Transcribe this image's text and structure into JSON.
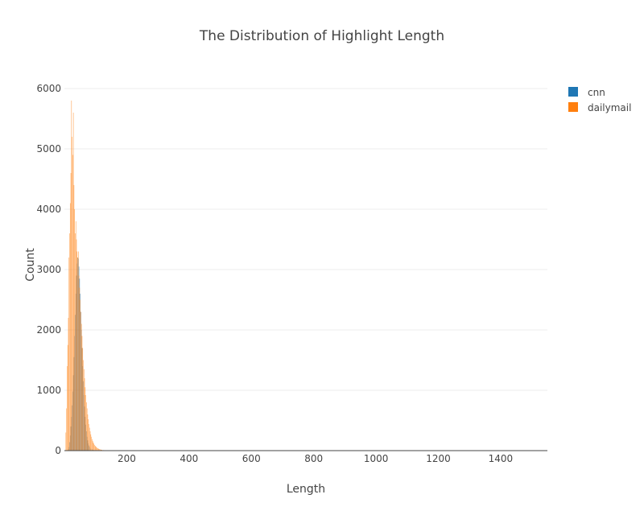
{
  "chart_data": {
    "type": "bar",
    "subtype": "overlaid-histogram",
    "title": "The Distribution of Highlight Length",
    "xlabel": "Length",
    "ylabel": "Count",
    "xlim": [
      0,
      1550
    ],
    "ylim": [
      0,
      6000
    ],
    "x_ticks": [
      200,
      400,
      600,
      800,
      1000,
      1200,
      1400
    ],
    "y_ticks": [
      0,
      1000,
      2000,
      3000,
      4000,
      5000,
      6000
    ],
    "x_tick_labels": [
      "200",
      "400",
      "600",
      "800",
      "1000",
      "1200",
      "1400"
    ],
    "y_tick_labels": [
      "0",
      "1000",
      "2000",
      "3000",
      "4000",
      "5000",
      "6000"
    ],
    "grid": true,
    "legend_position": "top-right",
    "bin_width": 2,
    "series": [
      {
        "name": "cnn",
        "color": "#1f77b4",
        "bins": [
          [
            12,
            20
          ],
          [
            14,
            60
          ],
          [
            16,
            140
          ],
          [
            18,
            250
          ],
          [
            20,
            400
          ],
          [
            22,
            560
          ],
          [
            24,
            750
          ],
          [
            26,
            980
          ],
          [
            28,
            1250
          ],
          [
            30,
            1550
          ],
          [
            32,
            1900
          ],
          [
            34,
            2250
          ],
          [
            36,
            2600
          ],
          [
            38,
            2900
          ],
          [
            40,
            3100
          ],
          [
            42,
            3200
          ],
          [
            44,
            3180
          ],
          [
            46,
            3050
          ],
          [
            48,
            2850
          ],
          [
            50,
            2600
          ],
          [
            52,
            2300
          ],
          [
            54,
            2000
          ],
          [
            56,
            1700
          ],
          [
            58,
            1400
          ],
          [
            60,
            1150
          ],
          [
            62,
            920
          ],
          [
            64,
            730
          ],
          [
            66,
            560
          ],
          [
            68,
            430
          ],
          [
            70,
            320
          ],
          [
            72,
            230
          ],
          [
            74,
            170
          ],
          [
            76,
            120
          ],
          [
            78,
            85
          ],
          [
            80,
            60
          ],
          [
            84,
            35
          ],
          [
            88,
            20
          ],
          [
            92,
            12
          ],
          [
            100,
            6
          ],
          [
            110,
            3
          ]
        ]
      },
      {
        "name": "dailymail",
        "color": "#ff7f0e",
        "bins": [
          [
            4,
            300
          ],
          [
            6,
            700
          ],
          [
            8,
            1400
          ],
          [
            10,
            1750
          ],
          [
            12,
            2200
          ],
          [
            14,
            3200
          ],
          [
            16,
            3600
          ],
          [
            18,
            4100
          ],
          [
            20,
            4600
          ],
          [
            22,
            5800
          ],
          [
            24,
            5200
          ],
          [
            26,
            4900
          ],
          [
            28,
            5600
          ],
          [
            30,
            4400
          ],
          [
            32,
            4000
          ],
          [
            34,
            3600
          ],
          [
            36,
            3800
          ],
          [
            38,
            3500
          ],
          [
            40,
            3300
          ],
          [
            42,
            3200
          ],
          [
            44,
            3300
          ],
          [
            46,
            2900
          ],
          [
            48,
            2700
          ],
          [
            50,
            2500
          ],
          [
            52,
            2300
          ],
          [
            54,
            2100
          ],
          [
            56,
            1900
          ],
          [
            58,
            1700
          ],
          [
            60,
            1500
          ],
          [
            62,
            1350
          ],
          [
            64,
            1200
          ],
          [
            66,
            1050
          ],
          [
            68,
            920
          ],
          [
            70,
            800
          ],
          [
            72,
            700
          ],
          [
            74,
            600
          ],
          [
            76,
            520
          ],
          [
            78,
            440
          ],
          [
            80,
            380
          ],
          [
            82,
            320
          ],
          [
            84,
            270
          ],
          [
            86,
            230
          ],
          [
            88,
            190
          ],
          [
            90,
            160
          ],
          [
            92,
            135
          ],
          [
            94,
            115
          ],
          [
            96,
            95
          ],
          [
            98,
            80
          ],
          [
            100,
            68
          ],
          [
            102,
            57
          ],
          [
            104,
            48
          ],
          [
            106,
            40
          ],
          [
            108,
            34
          ],
          [
            110,
            28
          ],
          [
            112,
            24
          ],
          [
            114,
            20
          ],
          [
            116,
            17
          ],
          [
            118,
            14
          ],
          [
            120,
            12
          ],
          [
            124,
            9
          ],
          [
            128,
            7
          ],
          [
            132,
            5
          ],
          [
            136,
            4
          ],
          [
            140,
            3
          ],
          [
            150,
            2
          ],
          [
            160,
            2
          ],
          [
            180,
            1
          ],
          [
            200,
            1
          ]
        ]
      }
    ]
  }
}
